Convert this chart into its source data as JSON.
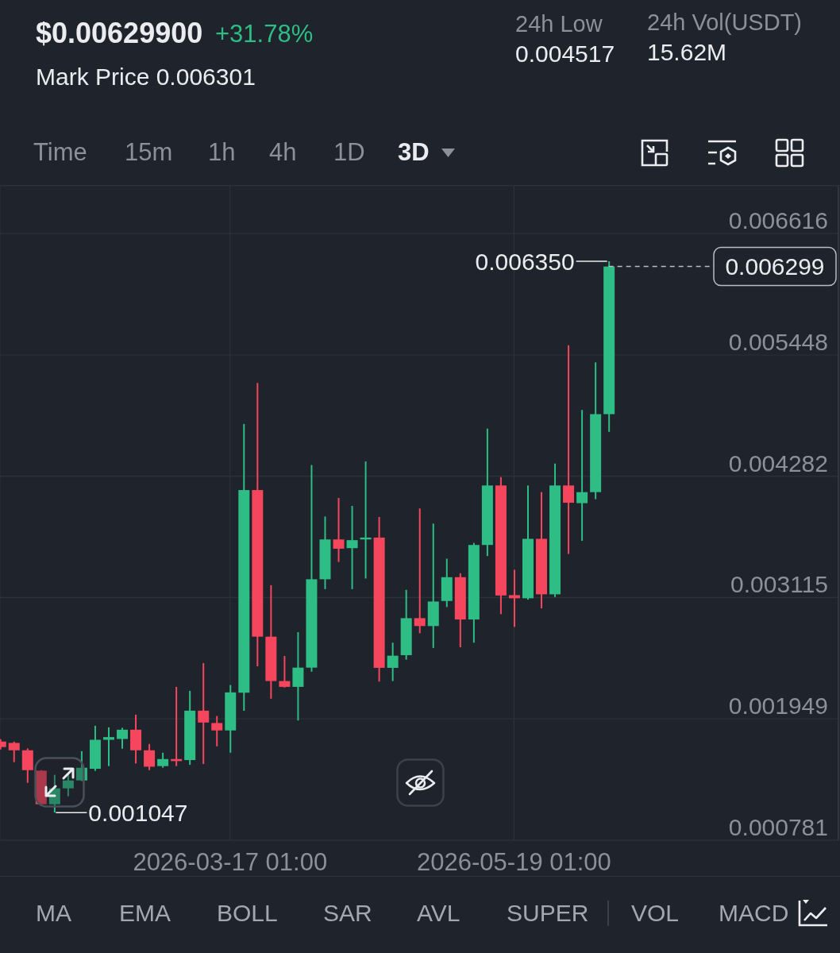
{
  "chart_data": {
    "type": "candlestick",
    "x": [
      "2026-01-25T01:00",
      "2026-01-28T01:00",
      "2026-01-31T01:00",
      "2026-02-03T01:00",
      "2026-02-06T01:00",
      "2026-02-09T01:00",
      "2026-02-12T01:00",
      "2026-02-15T01:00",
      "2026-02-18T01:00",
      "2026-02-21T01:00",
      "2026-02-24T01:00",
      "2026-02-27T01:00",
      "2026-03-02T01:00",
      "2026-03-05T01:00",
      "2026-03-08T01:00",
      "2026-03-11T01:00",
      "2026-03-14T01:00",
      "2026-03-17T01:00",
      "2026-03-20T01:00",
      "2026-03-23T01:00",
      "2026-03-26T01:00",
      "2026-03-29T01:00",
      "2026-04-01T01:00",
      "2026-04-04T01:00",
      "2026-04-07T01:00",
      "2026-04-10T01:00",
      "2026-04-13T01:00",
      "2026-04-16T01:00",
      "2026-04-19T01:00",
      "2026-04-22T01:00",
      "2026-04-25T01:00",
      "2026-04-28T01:00",
      "2026-05-01T01:00",
      "2026-05-04T01:00",
      "2026-05-07T01:00",
      "2026-05-10T01:00",
      "2026-05-13T01:00",
      "2026-05-16T01:00",
      "2026-05-19T01:00",
      "2026-05-22T01:00",
      "2026-05-25T01:00",
      "2026-05-28T01:00",
      "2026-05-31T01:00",
      "2026-06-03T01:00",
      "2026-06-06T01:00",
      "2026-06-09T01:00"
    ],
    "ohlc": [
      [
        0.00173,
        0.001753,
        0.001654,
        0.001677
      ],
      [
        0.001717,
        0.00173,
        0.001532,
        0.001646
      ],
      [
        0.001646,
        0.001664,
        0.001333,
        0.001455
      ],
      [
        0.00145,
        0.001455,
        0.001112,
        0.001127
      ],
      [
        0.001127,
        0.00141,
        0.001047,
        0.00128
      ],
      [
        0.00128,
        0.001417,
        0.001204,
        0.001356
      ],
      [
        0.001356,
        0.001638,
        0.001349,
        0.001478
      ],
      [
        0.001468,
        0.001882,
        0.001448,
        0.001747
      ],
      [
        0.001747,
        0.001867,
        0.001494,
        0.001773
      ],
      [
        0.001755,
        0.001862,
        0.001661,
        0.001844
      ],
      [
        0.001844,
        0.001989,
        0.001519,
        0.001646
      ],
      [
        0.001646,
        0.001707,
        0.001455,
        0.001488
      ],
      [
        0.001494,
        0.001623,
        0.001478,
        0.001562
      ],
      [
        0.001562,
        0.002256,
        0.001494,
        0.001542
      ],
      [
        0.001552,
        0.002218,
        0.001506,
        0.002027
      ],
      [
        0.002027,
        0.002485,
        0.001514,
        0.001913
      ],
      [
        0.001908,
        0.001976,
        0.001684,
        0.001837
      ],
      [
        0.001837,
        0.002274,
        0.001623,
        0.002203
      ],
      [
        0.0022,
        0.004785,
        0.002027,
        0.004149
      ],
      [
        0.004149,
        0.005179,
        0.002454,
        0.002739
      ],
      [
        0.002739,
        0.003234,
        0.002142,
        0.002312
      ],
      [
        0.002312,
        0.002553,
        0.00225,
        0.002256
      ],
      [
        0.002256,
        0.002782,
        0.001933,
        0.002441
      ],
      [
        0.002441,
        0.004391,
        0.002403,
        0.003291
      ],
      [
        0.003291,
        0.003895,
        0.003196,
        0.003674
      ],
      [
        0.003674,
        0.004073,
        0.003458,
        0.003585
      ],
      [
        0.00359,
        0.003997,
        0.003196,
        0.003667
      ],
      [
        0.003674,
        0.004424,
        0.003298,
        0.003692
      ],
      [
        0.003692,
        0.00389,
        0.002307,
        0.002439
      ],
      [
        0.002439,
        0.002681,
        0.002312,
        0.002556
      ],
      [
        0.002561,
        0.003189,
        0.002518,
        0.002917
      ],
      [
        0.002917,
        0.003972,
        0.002772,
        0.002841
      ],
      [
        0.002841,
        0.003827,
        0.00263,
        0.003077
      ],
      [
        0.003082,
        0.003489,
        0.003024,
        0.003311
      ],
      [
        0.003311,
        0.003349,
        0.002637,
        0.002904
      ],
      [
        0.002904,
        0.003641,
        0.002681,
        0.003621
      ],
      [
        0.003621,
        0.00474,
        0.003514,
        0.004193
      ],
      [
        0.004193,
        0.004274,
        0.002955,
        0.003135
      ],
      [
        0.003138,
        0.003382,
        0.002833,
        0.003108
      ],
      [
        0.003108,
        0.004193,
        0.003095,
        0.00368
      ],
      [
        0.00368,
        0.004129,
        0.003011,
        0.003146
      ],
      [
        0.003146,
        0.004404,
        0.00312,
        0.004193
      ],
      [
        0.004193,
        0.005542,
        0.003535,
        0.004027
      ],
      [
        0.004023,
        0.004919,
        0.003661,
        0.004129
      ],
      [
        0.004129,
        0.005377,
        0.004061,
        0.004879
      ],
      [
        0.004879,
        0.00635,
        0.004709,
        0.006299
      ]
    ],
    "colors": [
      "#f6465d",
      "#f6465d",
      "#f6465d",
      "#f6465d",
      "#2ebd85",
      "#2ebd85",
      "#2ebd85",
      "#2ebd85",
      "#2ebd85",
      "#2ebd85",
      "#f6465d",
      "#f6465d",
      "#2ebd85",
      "#f6465d",
      "#2ebd85",
      "#f6465d",
      "#f6465d",
      "#2ebd85",
      "#2ebd85",
      "#f6465d",
      "#f6465d",
      "#f6465d",
      "#2ebd85",
      "#2ebd85",
      "#2ebd85",
      "#f6465d",
      "#2ebd85",
      "#2ebd85",
      "#f6465d",
      "#2ebd85",
      "#2ebd85",
      "#f6465d",
      "#2ebd85",
      "#2ebd85",
      "#f6465d",
      "#2ebd85",
      "#2ebd85",
      "#f6465d",
      "#f6465d",
      "#2ebd85",
      "#f6465d",
      "#2ebd85",
      "#f6465d",
      "#2ebd85",
      "#2ebd85",
      "#2ebd85"
    ],
    "xlim": [
      "2026-01-25",
      "2026-07-30"
    ],
    "xticks": [
      {
        "value": "2026-03-17T01:00",
        "label": "2026-03-17 01:00"
      },
      {
        "value": "2026-05-19T01:00",
        "label": "2026-05-19 01:00"
      }
    ],
    "ylim": [
      0.000781,
      0.007075
    ],
    "yticks": [
      0.000781,
      0.001949,
      0.003115,
      0.004282,
      0.005448,
      0.006616
    ],
    "grid": true,
    "ref_lines": [
      {
        "axis": "y",
        "value": 0.006299,
        "label": "0.006299",
        "line_style": "dashed",
        "color": "#b7bdc6"
      }
    ],
    "annotations": [
      {
        "text": "0.006350",
        "x": "2026-06-09T01:00",
        "y": 0.00635
      },
      {
        "text": "0.001047",
        "x": "2026-02-06T01:00",
        "y": 0.001047
      },
      "$0.00629900",
      "+31.78%",
      "Mark Price 0.006301",
      "24h Low",
      "0.004517",
      "24h Vol(USDT)",
      "15.62M",
      "Time",
      "15m",
      "1h",
      "4h",
      "1D",
      "3D",
      "MA",
      "EMA",
      "BOLL",
      "SAR",
      "AVL",
      "SUPER",
      "VOL",
      "MACD"
    ]
  }
}
